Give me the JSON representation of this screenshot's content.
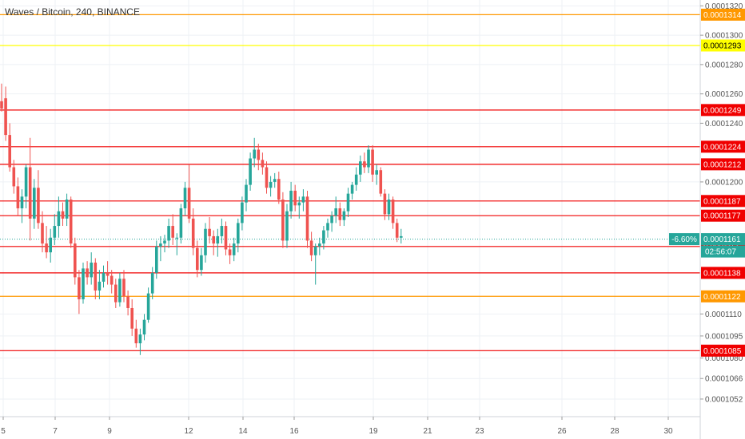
{
  "chart_data": {
    "type": "candlestick",
    "title": "Waves / Bitcoin, 240, BINANCE",
    "colors": {
      "up": "#26a69a",
      "down": "#ef5350",
      "red_level": "#f00000",
      "orange_level": "#ff9800",
      "yellow_level": "#ffff00",
      "grid": "#eef1f5"
    },
    "ylim": [
      0.000104,
      0.0001324
    ],
    "y_ticks": [
      "0.0001320",
      "0.0001300",
      "0.0001280",
      "0.0001260",
      "0.0001240",
      "0.0001200",
      "0.0001110",
      "0.0001095",
      "0.0001080",
      "0.0001066",
      "0.0001052"
    ],
    "x_ticks": [
      "5",
      "7",
      "9",
      "12",
      "14",
      "16",
      "19",
      "21",
      "23",
      "26",
      "28",
      "30"
    ],
    "levels": [
      {
        "value": "0.0001314",
        "kind": "orange"
      },
      {
        "value": "0.0001293",
        "kind": "yellow"
      },
      {
        "value": "0.0001249",
        "kind": "red"
      },
      {
        "value": "0.0001224",
        "kind": "red"
      },
      {
        "value": "0.0001212",
        "kind": "red"
      },
      {
        "value": "0.0001187",
        "kind": "red"
      },
      {
        "value": "0.0001177",
        "kind": "red"
      },
      {
        "value": "0.0001156",
        "kind": "red"
      },
      {
        "value": "0.0001138",
        "kind": "red"
      },
      {
        "value": "0.0001122",
        "kind": "orange"
      },
      {
        "value": "0.0001085",
        "kind": "red"
      }
    ],
    "current_price": {
      "value": "0.0001161",
      "change": "-6.60%",
      "countdown": "02:56:07"
    },
    "candles": [
      [
        0.0001255,
        0.0001267,
        0.0001248,
        0.000125
      ],
      [
        0.0001257,
        0.0001265,
        0.0001228,
        0.0001232
      ],
      [
        0.0001232,
        0.000124,
        0.0001207,
        0.000121
      ],
      [
        0.000121,
        0.0001215,
        0.0001192,
        0.0001197
      ],
      [
        0.0001197,
        0.0001203,
        0.0001177,
        0.0001182
      ],
      [
        0.0001182,
        0.0001195,
        0.0001172,
        0.000119
      ],
      [
        0.000119,
        0.0001212,
        0.0001182,
        0.000121
      ],
      [
        0.000121,
        0.000123,
        0.000116,
        0.0001175
      ],
      [
        0.0001175,
        0.0001202,
        0.0001168,
        0.0001196
      ],
      [
        0.0001196,
        0.0001208,
        0.0001168,
        0.0001172
      ],
      [
        0.0001172,
        0.000118,
        0.0001152,
        0.0001158
      ],
      [
        0.0001158,
        0.000117,
        0.0001148,
        0.0001152
      ],
      [
        0.0001152,
        0.0001168,
        0.0001145,
        0.0001162
      ],
      [
        0.0001162,
        0.0001178,
        0.0001157,
        0.000117
      ],
      [
        0.000117,
        0.000119,
        0.0001162,
        0.000118
      ],
      [
        0.000118,
        0.0001186,
        0.000117,
        0.0001175
      ],
      [
        0.0001175,
        0.0001192,
        0.000117,
        0.0001188
      ],
      [
        0.0001188,
        0.000119,
        0.0001155,
        0.0001158
      ],
      [
        0.0001158,
        0.0001162,
        0.000113,
        0.0001135
      ],
      [
        0.0001135,
        0.000114,
        0.000111,
        0.000112
      ],
      [
        0.000112,
        0.0001145,
        0.0001117,
        0.0001141
      ],
      [
        0.0001141,
        0.0001146,
        0.000113,
        0.0001135
      ],
      [
        0.0001135,
        0.0001152,
        0.000113,
        0.0001145
      ],
      [
        0.0001145,
        0.0001148,
        0.000112,
        0.0001126
      ],
      [
        0.0001126,
        0.000114,
        0.000112,
        0.0001132
      ],
      [
        0.0001132,
        0.0001143,
        0.0001128,
        0.0001138
      ],
      [
        0.0001138,
        0.0001146,
        0.000113,
        0.0001136
      ],
      [
        0.0001136,
        0.000114,
        0.0001124,
        0.000113
      ],
      [
        0.000113,
        0.0001134,
        0.0001114,
        0.0001118
      ],
      [
        0.0001118,
        0.0001138,
        0.0001115,
        0.0001134
      ],
      [
        0.0001134,
        0.000114,
        0.0001118,
        0.0001122
      ],
      [
        0.0001122,
        0.0001126,
        0.0001109,
        0.0001114
      ],
      [
        0.0001114,
        0.000112,
        0.0001095,
        0.00011
      ],
      [
        0.00011,
        0.0001106,
        0.0001087,
        0.000109
      ],
      [
        0.000109,
        0.00011,
        0.0001082,
        0.0001096
      ],
      [
        0.0001096,
        0.000111,
        0.0001092,
        0.0001106
      ],
      [
        0.0001106,
        0.0001128,
        0.0001104,
        0.0001124
      ],
      [
        0.0001124,
        0.0001142,
        0.000112,
        0.0001138
      ],
      [
        0.0001138,
        0.000116,
        0.0001134,
        0.0001156
      ],
      [
        0.0001156,
        0.0001163,
        0.0001146,
        0.0001158
      ],
      [
        0.0001158,
        0.0001164,
        0.0001152,
        0.000116
      ],
      [
        0.000116,
        0.0001175,
        0.0001155,
        0.000117
      ],
      [
        0.000117,
        0.0001178,
        0.0001157,
        0.0001162
      ],
      [
        0.0001162,
        0.0001165,
        0.000115,
        0.0001162
      ],
      [
        0.0001162,
        0.0001185,
        0.0001158,
        0.0001182
      ],
      [
        0.0001182,
        0.00012,
        0.0001177,
        0.0001196
      ],
      [
        0.0001196,
        0.0001212,
        0.0001172,
        0.0001175
      ],
      [
        0.0001175,
        0.0001182,
        0.000115,
        0.0001155
      ],
      [
        0.0001155,
        0.000116,
        0.0001135,
        0.000114
      ],
      [
        0.000114,
        0.0001155,
        0.0001136,
        0.000115
      ],
      [
        0.000115,
        0.0001172,
        0.0001145,
        0.0001168
      ],
      [
        0.0001168,
        0.0001176,
        0.0001158,
        0.0001163
      ],
      [
        0.0001163,
        0.0001167,
        0.000115,
        0.0001158
      ],
      [
        0.0001158,
        0.0001168,
        0.0001149,
        0.0001163
      ],
      [
        0.0001163,
        0.0001175,
        0.0001158,
        0.000117
      ],
      [
        0.000117,
        0.0001173,
        0.000115,
        0.0001154
      ],
      [
        0.0001154,
        0.0001158,
        0.0001144,
        0.000115
      ],
      [
        0.000115,
        0.0001162,
        0.0001146,
        0.0001158
      ],
      [
        0.0001158,
        0.0001175,
        0.0001152,
        0.0001172
      ],
      [
        0.0001172,
        0.000119,
        0.0001167,
        0.0001186
      ],
      [
        0.0001186,
        0.0001202,
        0.000118,
        0.0001198
      ],
      [
        0.0001198,
        0.000122,
        0.0001194,
        0.0001216
      ],
      [
        0.0001216,
        0.000123,
        0.000121,
        0.0001222
      ],
      [
        0.0001222,
        0.0001226,
        0.0001208,
        0.0001215
      ],
      [
        0.0001215,
        0.000122,
        0.0001205,
        0.000121
      ],
      [
        0.000121,
        0.0001214,
        0.0001192,
        0.0001196
      ],
      [
        0.0001196,
        0.0001204,
        0.000119,
        0.00012
      ],
      [
        0.00012,
        0.0001206,
        0.0001196,
        0.0001202
      ],
      [
        0.0001202,
        0.0001207,
        0.0001185,
        0.0001188
      ],
      [
        0.0001188,
        0.0001193,
        0.0001155,
        0.000116
      ],
      [
        0.000116,
        0.0001185,
        0.0001155,
        0.000118
      ],
      [
        0.000118,
        0.00012,
        0.0001175,
        0.0001194
      ],
      [
        0.0001194,
        0.0001198,
        0.000118,
        0.0001184
      ],
      [
        0.0001184,
        0.000119,
        0.0001175,
        0.0001186
      ],
      [
        0.0001186,
        0.0001195,
        0.000118,
        0.000119
      ],
      [
        0.000119,
        0.0001194,
        0.0001155,
        0.000116
      ],
      [
        0.000116,
        0.0001166,
        0.0001146,
        0.000115
      ],
      [
        0.000115,
        0.0001158,
        0.000113,
        0.0001156
      ],
      [
        0.0001156,
        0.0001162,
        0.000115,
        0.0001158
      ],
      [
        0.0001158,
        0.000117,
        0.0001154,
        0.0001167
      ],
      [
        0.0001167,
        0.0001175,
        0.0001162,
        0.0001172
      ],
      [
        0.0001172,
        0.000118,
        0.0001166,
        0.0001177
      ],
      [
        0.0001177,
        0.000119,
        0.0001172,
        0.0001182
      ],
      [
        0.0001182,
        0.0001186,
        0.000117,
        0.0001174
      ],
      [
        0.0001174,
        0.0001182,
        0.000117,
        0.000118
      ],
      [
        0.000118,
        0.0001196,
        0.0001176,
        0.0001192
      ],
      [
        0.0001192,
        0.00012,
        0.0001188,
        0.0001198
      ],
      [
        0.0001198,
        0.000121,
        0.0001194,
        0.0001205
      ],
      [
        0.0001205,
        0.0001218,
        0.00012,
        0.0001214
      ],
      [
        0.0001214,
        0.000122,
        0.0001206,
        0.000121
      ],
      [
        0.000121,
        0.0001225,
        0.0001206,
        0.0001222
      ],
      [
        0.0001222,
        0.0001225,
        0.00012,
        0.0001205
      ],
      [
        0.0001205,
        0.0001212,
        0.0001198,
        0.0001208
      ],
      [
        0.0001208,
        0.000121,
        0.000119,
        0.0001192
      ],
      [
        0.0001192,
        0.0001195,
        0.0001174,
        0.0001178
      ],
      [
        0.0001178,
        0.0001192,
        0.0001174,
        0.0001188
      ],
      [
        0.0001188,
        0.000119,
        0.0001168,
        0.0001172
      ],
      [
        0.0001172,
        0.0001175,
        0.0001159,
        0.0001162
      ],
      [
        0.0001162,
        0.0001168,
        0.0001158,
        0.0001163
      ]
    ]
  }
}
